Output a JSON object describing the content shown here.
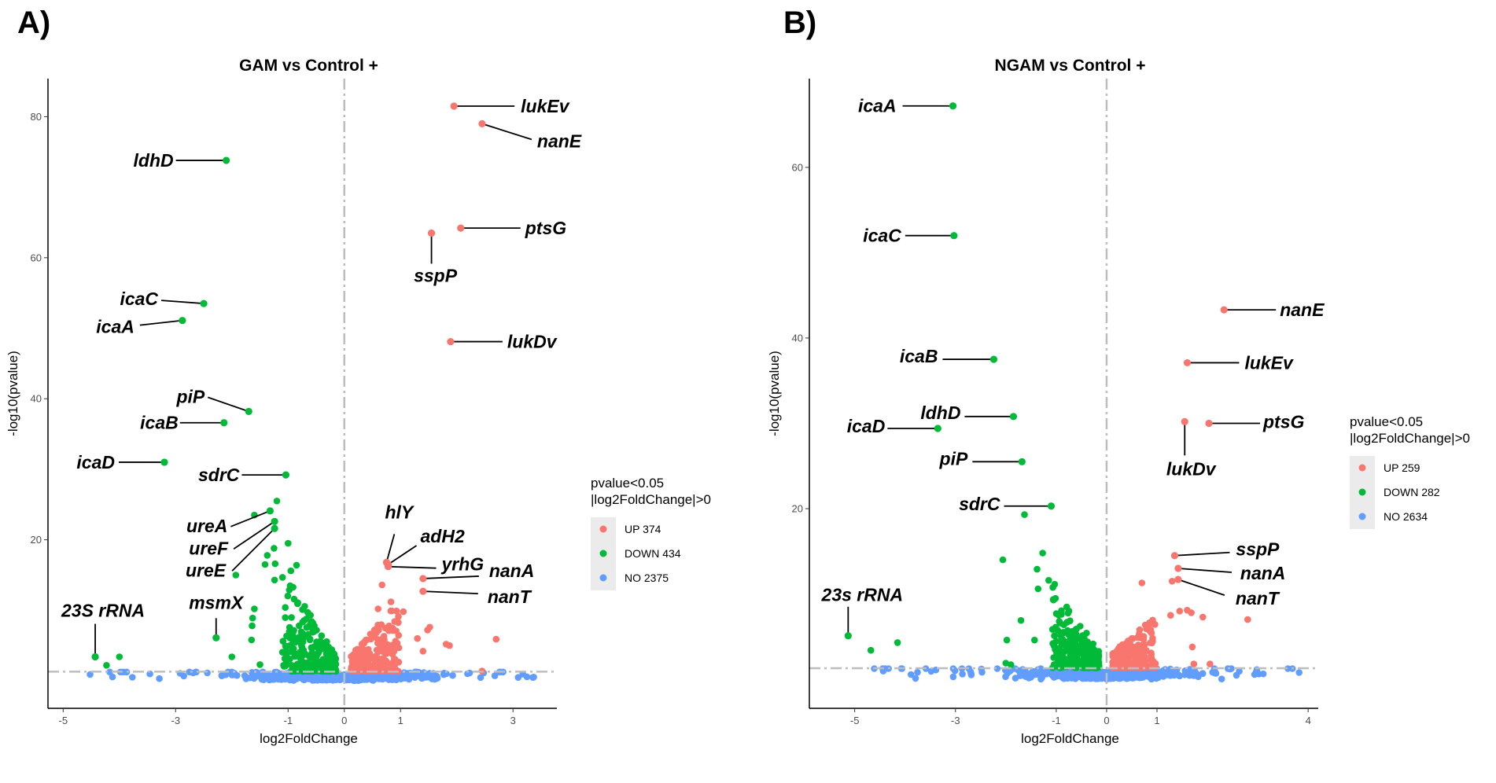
{
  "colors": {
    "UP": "#F8766D",
    "DOWN": "#00BA38",
    "NO": "#619CFF",
    "ref_line": "#bdbdbd"
  },
  "chart_data": [
    {
      "type": "scatter",
      "panel_label": "A)",
      "title": "GAM vs Control +",
      "xlabel": "log2FoldChange",
      "ylabel": "-log10(pvalue)",
      "xlim": [
        -5.27,
        3.78
      ],
      "ylim": [
        -3.9,
        85.4
      ],
      "xticks": [
        -5,
        -3,
        -1,
        0,
        1,
        3
      ],
      "yticks": [
        20,
        40,
        60,
        80
      ],
      "threshold_y": 1.3,
      "threshold_x": 0,
      "legend": {
        "title_line1": "pvalue<0.05",
        "title_line2": "|log2FoldChange|>0",
        "position": "right",
        "entries": [
          {
            "group": "UP",
            "label": "UP 374"
          },
          {
            "group": "DOWN",
            "label": "DOWN 434"
          },
          {
            "group": "NO",
            "label": "NO 2375"
          }
        ]
      },
      "labeled_points": [
        {
          "gene": "lukEv",
          "x": 1.95,
          "y": 81.5,
          "group": "UP"
        },
        {
          "gene": "nanE",
          "x": 2.45,
          "y": 79.0,
          "group": "UP"
        },
        {
          "gene": "ldhD",
          "x": -2.1,
          "y": 73.8,
          "group": "DOWN"
        },
        {
          "gene": "ptsG",
          "x": 2.07,
          "y": 64.2,
          "group": "UP"
        },
        {
          "gene": "sspP",
          "x": 1.55,
          "y": 63.5,
          "group": "UP"
        },
        {
          "gene": "icaC",
          "x": -2.5,
          "y": 53.5,
          "group": "DOWN"
        },
        {
          "gene": "icaA",
          "x": -2.88,
          "y": 51.1,
          "group": "DOWN"
        },
        {
          "gene": "lukDv",
          "x": 1.89,
          "y": 48.1,
          "group": "UP"
        },
        {
          "gene": "piP",
          "x": -1.7,
          "y": 38.2,
          "group": "DOWN"
        },
        {
          "gene": "icaB",
          "x": -2.14,
          "y": 36.6,
          "group": "DOWN"
        },
        {
          "gene": "icaD",
          "x": -3.2,
          "y": 31.0,
          "group": "DOWN"
        },
        {
          "gene": "sdrC",
          "x": -1.04,
          "y": 29.2,
          "group": "DOWN"
        },
        {
          "gene": "ureA",
          "x": -1.32,
          "y": 24.1,
          "group": "DOWN"
        },
        {
          "gene": "ureF",
          "x": -1.24,
          "y": 22.6,
          "group": "DOWN"
        },
        {
          "gene": "ureE",
          "x": -1.24,
          "y": 21.6,
          "group": "DOWN"
        },
        {
          "gene": "hlY",
          "x": 0.75,
          "y": 16.8,
          "group": "UP"
        },
        {
          "gene": "adH2",
          "x": 0.78,
          "y": 16.5,
          "group": "UP"
        },
        {
          "gene": "yrhG",
          "x": 0.78,
          "y": 16.2,
          "group": "UP"
        },
        {
          "gene": "nanA",
          "x": 1.4,
          "y": 14.5,
          "group": "UP"
        },
        {
          "gene": "nanT",
          "x": 1.4,
          "y": 12.7,
          "group": "UP"
        },
        {
          "gene": "msmX",
          "x": -2.28,
          "y": 6.1,
          "group": "DOWN"
        },
        {
          "gene": "23S rRNA",
          "x": -4.43,
          "y": 3.4,
          "group": "DOWN"
        }
      ],
      "other_points": [
        {
          "x": -4.23,
          "y": 2.2,
          "group": "DOWN"
        },
        {
          "x": -4.0,
          "y": 3.4,
          "group": "DOWN"
        },
        {
          "x": -1.2,
          "y": 25.5,
          "group": "DOWN"
        },
        {
          "x": -1.6,
          "y": 23.5,
          "group": "DOWN"
        },
        {
          "x": -1.0,
          "y": 19.5,
          "group": "DOWN"
        },
        {
          "x": -1.25,
          "y": 18.8,
          "group": "DOWN"
        },
        {
          "x": -1.37,
          "y": 17.8,
          "group": "DOWN"
        },
        {
          "x": -1.41,
          "y": 16.5,
          "group": "DOWN"
        },
        {
          "x": -1.23,
          "y": 16.6,
          "group": "DOWN"
        },
        {
          "x": -1.93,
          "y": 15.0,
          "group": "DOWN"
        },
        {
          "x": -0.95,
          "y": 15.6,
          "group": "DOWN"
        },
        {
          "x": -0.85,
          "y": 16.4,
          "group": "DOWN"
        },
        {
          "x": -1.24,
          "y": 14.3,
          "group": "DOWN"
        },
        {
          "x": -1.6,
          "y": 10.2,
          "group": "DOWN"
        },
        {
          "x": -1.63,
          "y": 8.9,
          "group": "DOWN"
        },
        {
          "x": -1.64,
          "y": 7.8,
          "group": "DOWN"
        },
        {
          "x": -1.65,
          "y": 5.8,
          "group": "DOWN"
        },
        {
          "x": -2.0,
          "y": 3.4,
          "group": "DOWN"
        },
        {
          "x": -1.5,
          "y": 2.3,
          "group": "DOWN"
        },
        {
          "x": 2.7,
          "y": 5.9,
          "group": "UP"
        },
        {
          "x": 2.45,
          "y": 1.4,
          "group": "UP"
        },
        {
          "x": 1.87,
          "y": 5.0,
          "group": "UP"
        },
        {
          "x": 1.81,
          "y": 5.2,
          "group": "UP"
        },
        {
          "x": 1.52,
          "y": 7.6,
          "group": "UP"
        },
        {
          "x": 1.48,
          "y": 7.2,
          "group": "UP"
        },
        {
          "x": 1.3,
          "y": 6.0,
          "group": "UP"
        },
        {
          "x": 1.4,
          "y": 4.2,
          "group": "UP"
        },
        {
          "x": 0.67,
          "y": 13.6,
          "group": "UP"
        },
        {
          "x": 0.83,
          "y": 11.2,
          "group": "UP"
        },
        {
          "x": 0.93,
          "y": 9.9,
          "group": "UP"
        },
        {
          "x": 1.05,
          "y": 9.8,
          "group": "UP"
        },
        {
          "x": 0.6,
          "y": 10.2,
          "group": "UP"
        }
      ]
    },
    {
      "type": "scatter",
      "panel_label": "B)",
      "title": "NGAM vs Control +",
      "xlabel": "log2FoldChange",
      "ylabel": "-log10(pvalue)",
      "xlim": [
        -5.9,
        4.2
      ],
      "ylim": [
        -3.4,
        70.4
      ],
      "xticks": [
        -5,
        -3,
        -1,
        0,
        1,
        4
      ],
      "yticks": [
        20,
        40,
        60
      ],
      "threshold_y": 1.3,
      "threshold_x": 0,
      "legend": {
        "title_line1": "pvalue<0.05",
        "title_line2": "|log2FoldChange|>0",
        "position": "right",
        "entries": [
          {
            "group": "UP",
            "label": "UP 259"
          },
          {
            "group": "DOWN",
            "label": "DOWN 282"
          },
          {
            "group": "NO",
            "label": "NO 2634"
          }
        ]
      },
      "labeled_points": [
        {
          "gene": "icaA",
          "x": -3.05,
          "y": 67.2,
          "group": "DOWN"
        },
        {
          "gene": "icaC",
          "x": -3.03,
          "y": 52.0,
          "group": "DOWN"
        },
        {
          "gene": "nanE",
          "x": 2.33,
          "y": 43.3,
          "group": "UP"
        },
        {
          "gene": "lukEv",
          "x": 1.6,
          "y": 37.1,
          "group": "UP"
        },
        {
          "gene": "icaB",
          "x": -2.24,
          "y": 37.5,
          "group": "DOWN"
        },
        {
          "gene": "ldhD",
          "x": -1.85,
          "y": 30.8,
          "group": "DOWN"
        },
        {
          "gene": "icaD",
          "x": -3.35,
          "y": 29.4,
          "group": "DOWN"
        },
        {
          "gene": "lukDv",
          "x": 1.55,
          "y": 30.2,
          "group": "UP"
        },
        {
          "gene": "ptsG",
          "x": 2.03,
          "y": 30.0,
          "group": "UP"
        },
        {
          "gene": "piP",
          "x": -1.68,
          "y": 25.5,
          "group": "DOWN"
        },
        {
          "gene": "sdrC",
          "x": -1.1,
          "y": 20.3,
          "group": "DOWN"
        },
        {
          "gene": "sspP",
          "x": 1.35,
          "y": 14.5,
          "group": "UP"
        },
        {
          "gene": "nanA",
          "x": 1.42,
          "y": 13.0,
          "group": "UP"
        },
        {
          "gene": "nanT",
          "x": 1.42,
          "y": 11.7,
          "group": "UP"
        },
        {
          "gene": "23s rRNA",
          "x": -5.13,
          "y": 5.1,
          "group": "DOWN"
        }
      ],
      "other_points": [
        {
          "x": -4.68,
          "y": 3.4,
          "group": "DOWN"
        },
        {
          "x": -4.15,
          "y": 4.3,
          "group": "DOWN"
        },
        {
          "x": -1.63,
          "y": 19.3,
          "group": "DOWN"
        },
        {
          "x": -2.06,
          "y": 14.0,
          "group": "DOWN"
        },
        {
          "x": -1.27,
          "y": 14.8,
          "group": "DOWN"
        },
        {
          "x": -1.38,
          "y": 12.9,
          "group": "DOWN"
        },
        {
          "x": -1.15,
          "y": 11.6,
          "group": "DOWN"
        },
        {
          "x": -1.36,
          "y": 10.6,
          "group": "DOWN"
        },
        {
          "x": -1.7,
          "y": 6.9,
          "group": "DOWN"
        },
        {
          "x": -1.98,
          "y": 4.6,
          "group": "DOWN"
        },
        {
          "x": -1.43,
          "y": 4.6,
          "group": "DOWN"
        },
        {
          "x": -2.0,
          "y": 1.9,
          "group": "DOWN"
        },
        {
          "x": -1.9,
          "y": 1.7,
          "group": "DOWN"
        },
        {
          "x": 2.8,
          "y": 7.0,
          "group": "UP"
        },
        {
          "x": 0.7,
          "y": 11.3,
          "group": "UP"
        },
        {
          "x": 1.3,
          "y": 11.5,
          "group": "UP"
        },
        {
          "x": 1.6,
          "y": 8.1,
          "group": "UP"
        },
        {
          "x": 1.68,
          "y": 7.8,
          "group": "UP"
        },
        {
          "x": 1.45,
          "y": 8.0,
          "group": "UP"
        },
        {
          "x": 1.91,
          "y": 7.3,
          "group": "UP"
        },
        {
          "x": 1.27,
          "y": 7.5,
          "group": "UP"
        },
        {
          "x": 1.7,
          "y": 3.8,
          "group": "UP"
        },
        {
          "x": 1.73,
          "y": 1.8,
          "group": "UP"
        },
        {
          "x": 2.05,
          "y": 1.8,
          "group": "UP"
        }
      ]
    }
  ]
}
